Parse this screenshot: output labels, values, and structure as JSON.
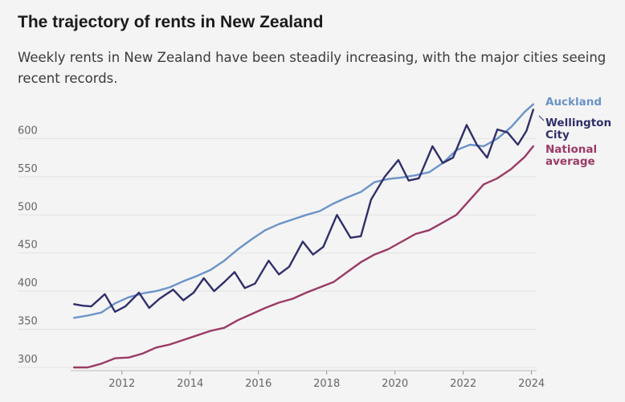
{
  "colors": {
    "auckland": "#6b93c9",
    "wellington": "#2f2f6b",
    "national": "#9a3a66",
    "grid": "#e2e2e2",
    "background": "#f4f4f4"
  },
  "chart_data": {
    "type": "line",
    "title": "The trajectory of rents in New Zealand",
    "subtitle": "Weekly rents in New Zealand have been steadily increasing, with the major cities seeing recent records.",
    "xlabel": "",
    "ylabel": "",
    "xlim": [
      2010.5,
      2024.15
    ],
    "ylim": [
      300,
      650
    ],
    "x_ticks": [
      2012,
      2014,
      2016,
      2018,
      2020,
      2022,
      2024
    ],
    "y_ticks": [
      300,
      350,
      400,
      450,
      500,
      550,
      600
    ],
    "grid": "horizontal",
    "legend": "direct-labels-right",
    "series": [
      {
        "name": "Auckland",
        "color": "#6b93c9",
        "x": [
          2010.6,
          2011.0,
          2011.4,
          2011.8,
          2012.2,
          2012.6,
          2013.0,
          2013.4,
          2013.8,
          2014.2,
          2014.6,
          2015.0,
          2015.4,
          2015.8,
          2016.2,
          2016.6,
          2017.0,
          2017.4,
          2017.8,
          2018.2,
          2018.6,
          2019.0,
          2019.4,
          2019.8,
          2020.2,
          2020.6,
          2021.0,
          2021.4,
          2021.8,
          2022.2,
          2022.6,
          2023.0,
          2023.4,
          2023.8,
          2024.05
        ],
        "values": [
          365,
          368,
          372,
          384,
          392,
          397,
          400,
          405,
          413,
          420,
          428,
          440,
          455,
          468,
          480,
          488,
          494,
          500,
          505,
          515,
          523,
          530,
          543,
          547,
          549,
          552,
          556,
          568,
          585,
          592,
          590,
          600,
          615,
          635,
          645
        ]
      },
      {
        "name": "Wellington City",
        "color": "#2f2f6b",
        "x": [
          2010.6,
          2010.85,
          2011.1,
          2011.5,
          2011.8,
          2012.1,
          2012.5,
          2012.8,
          2013.1,
          2013.5,
          2013.8,
          2014.1,
          2014.4,
          2014.7,
          2015.0,
          2015.3,
          2015.6,
          2015.9,
          2016.3,
          2016.6,
          2016.9,
          2017.3,
          2017.6,
          2017.9,
          2018.3,
          2018.7,
          2019.0,
          2019.3,
          2019.7,
          2020.1,
          2020.4,
          2020.7,
          2021.1,
          2021.4,
          2021.7,
          2022.1,
          2022.4,
          2022.7,
          2023.0,
          2023.3,
          2023.6,
          2023.85,
          2024.05
        ],
        "values": [
          383,
          381,
          380,
          396,
          373,
          380,
          398,
          378,
          390,
          402,
          388,
          398,
          417,
          400,
          412,
          425,
          404,
          410,
          440,
          422,
          432,
          465,
          448,
          458,
          500,
          470,
          472,
          520,
          550,
          572,
          545,
          548,
          590,
          568,
          575,
          618,
          592,
          575,
          612,
          608,
          592,
          610,
          638
        ]
      },
      {
        "name": "National average",
        "color": "#9a3a66",
        "x": [
          2010.6,
          2011.0,
          2011.4,
          2011.8,
          2012.2,
          2012.6,
          2013.0,
          2013.4,
          2013.8,
          2014.2,
          2014.6,
          2015.0,
          2015.4,
          2015.8,
          2016.2,
          2016.6,
          2017.0,
          2017.4,
          2017.8,
          2018.2,
          2018.6,
          2019.0,
          2019.4,
          2019.8,
          2020.2,
          2020.6,
          2021.0,
          2021.4,
          2021.8,
          2022.2,
          2022.6,
          2023.0,
          2023.4,
          2023.8,
          2024.05
        ],
        "values": [
          300,
          300,
          305,
          312,
          313,
          318,
          326,
          330,
          336,
          342,
          348,
          352,
          362,
          370,
          378,
          385,
          390,
          398,
          405,
          412,
          425,
          438,
          448,
          455,
          465,
          475,
          480,
          490,
          500,
          520,
          540,
          548,
          560,
          576,
          590
        ]
      }
    ]
  }
}
